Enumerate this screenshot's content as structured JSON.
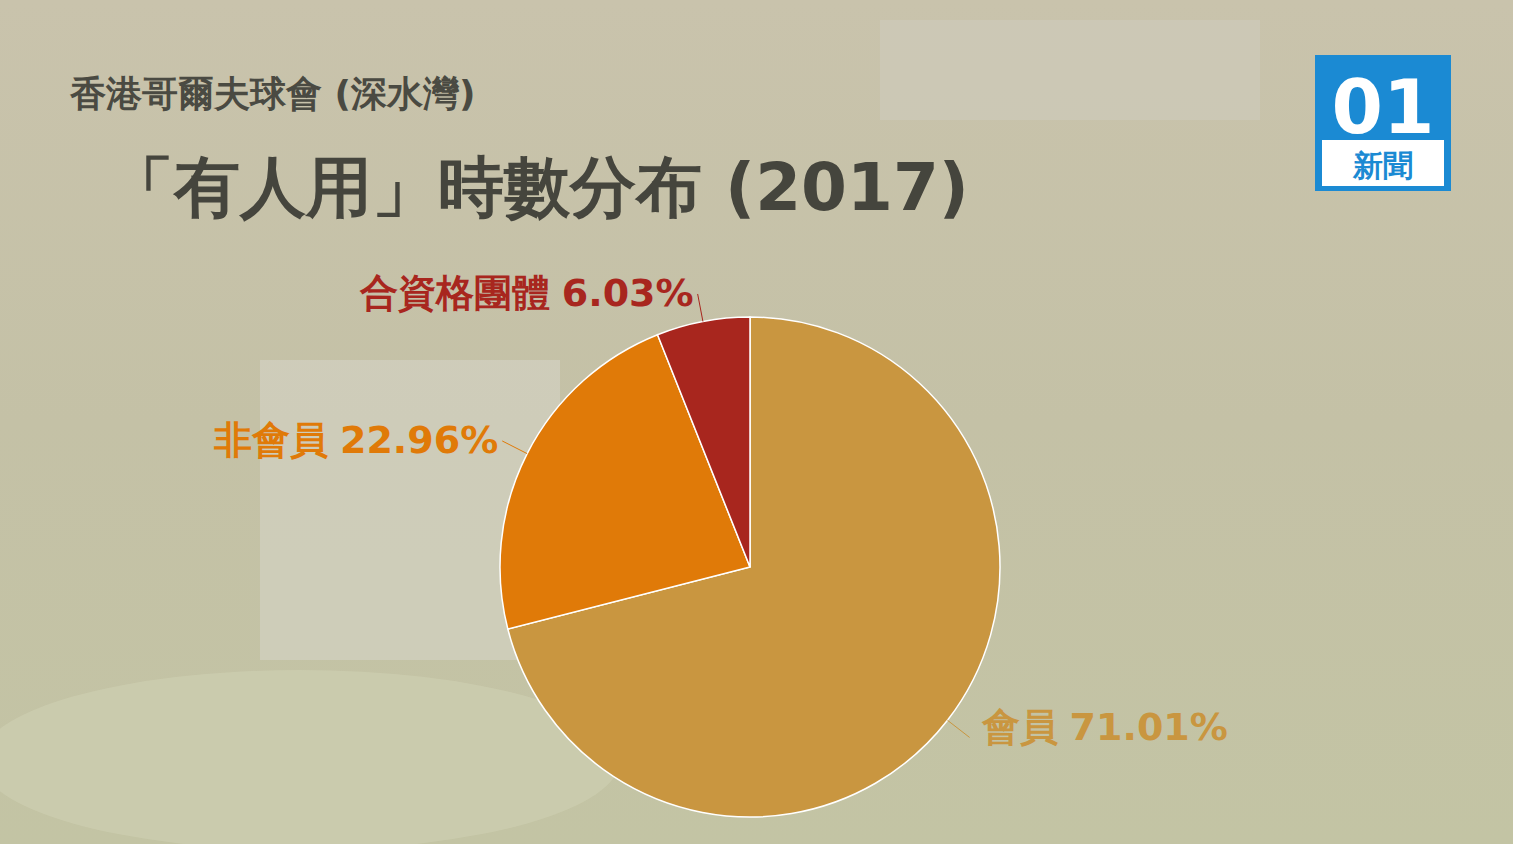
{
  "chart_data": {
    "type": "pie",
    "subtitle": "香港哥爾夫球會 (深水灣)",
    "title": "「有人用」時數分布 (2017)",
    "categories": [
      "會員",
      "非會員",
      "合資格團體"
    ],
    "values": [
      71.01,
      22.96,
      6.03
    ],
    "value_labels": [
      "71.01%",
      "22.96%",
      "6.03%"
    ],
    "colors": [
      "#c99640",
      "#e07a08",
      "#a8261e"
    ],
    "data_labels": true
  },
  "logo": {
    "mark": "01",
    "name": "新聞"
  }
}
